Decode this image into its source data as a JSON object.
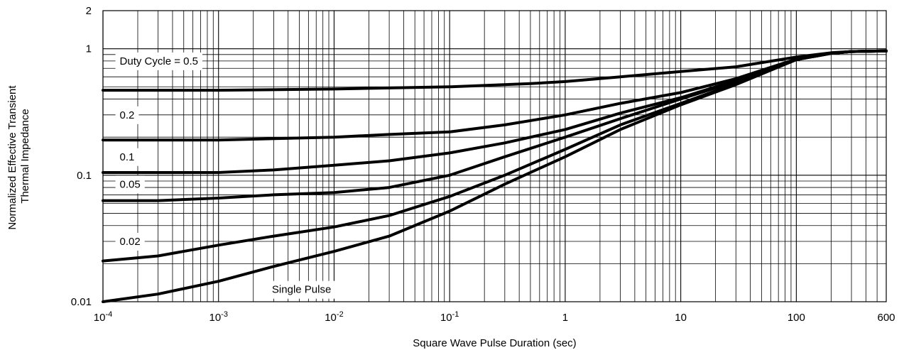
{
  "chart_data": {
    "type": "line",
    "title": "",
    "xlabel": "Square Wave Pulse Duration (sec)",
    "ylabel_lines": [
      "Normalized Effective Transient",
      "Thermal Impedance"
    ],
    "x_scale": "log",
    "y_scale": "log",
    "xlim": [
      0.0001,
      600
    ],
    "ylim": [
      0.01,
      2
    ],
    "grid": true,
    "x_ticks": [
      {
        "value": 0.0001,
        "base": "10",
        "exp": "-4"
      },
      {
        "value": 0.001,
        "base": "10",
        "exp": "-3"
      },
      {
        "value": 0.01,
        "base": "10",
        "exp": "-2"
      },
      {
        "value": 0.1,
        "base": "10",
        "exp": "-1"
      },
      {
        "value": 1,
        "base": "1",
        "exp": ""
      },
      {
        "value": 10,
        "base": "10",
        "exp": ""
      },
      {
        "value": 100,
        "base": "100",
        "exp": ""
      },
      {
        "value": 600,
        "base": "600",
        "exp": ""
      }
    ],
    "y_ticks": [
      {
        "value": 2,
        "label": "2"
      },
      {
        "value": 1,
        "label": "1"
      },
      {
        "value": 0.1,
        "label": "0.1"
      },
      {
        "value": 0.01,
        "label": "0.01"
      }
    ],
    "series": [
      {
        "name": "Duty Cycle = 0.5",
        "label_x": 0.00013,
        "label_y": 0.8,
        "x": [
          0.0001,
          0.001,
          0.01,
          0.1,
          0.5,
          1,
          3,
          10,
          30,
          100,
          200,
          300,
          600
        ],
        "y": [
          0.47,
          0.47,
          0.48,
          0.5,
          0.53,
          0.55,
          0.6,
          0.66,
          0.72,
          0.86,
          0.93,
          0.95,
          0.96
        ]
      },
      {
        "name": "0.2",
        "label_x": 0.00013,
        "label_y": 0.3,
        "x": [
          0.0001,
          0.001,
          0.01,
          0.03,
          0.1,
          0.3,
          1,
          3,
          10,
          30,
          100,
          200,
          300,
          600
        ],
        "y": [
          0.19,
          0.19,
          0.2,
          0.21,
          0.22,
          0.25,
          0.3,
          0.37,
          0.45,
          0.58,
          0.83,
          0.92,
          0.95,
          0.96
        ]
      },
      {
        "name": "0.1",
        "label_x": 0.00013,
        "label_y": 0.14,
        "x": [
          0.0001,
          0.001,
          0.003,
          0.01,
          0.03,
          0.1,
          0.3,
          1,
          3,
          10,
          30,
          100,
          200,
          300,
          600
        ],
        "y": [
          0.105,
          0.105,
          0.11,
          0.12,
          0.13,
          0.15,
          0.18,
          0.23,
          0.31,
          0.41,
          0.56,
          0.82,
          0.92,
          0.95,
          0.96
        ]
      },
      {
        "name": "0.05",
        "label_x": 0.00013,
        "label_y": 0.085,
        "x": [
          0.0001,
          0.0003,
          0.001,
          0.003,
          0.01,
          0.03,
          0.1,
          0.3,
          1,
          3,
          10,
          30,
          100,
          200,
          300,
          600
        ],
        "y": [
          0.063,
          0.063,
          0.066,
          0.07,
          0.073,
          0.08,
          0.1,
          0.14,
          0.2,
          0.28,
          0.4,
          0.55,
          0.82,
          0.92,
          0.95,
          0.96
        ]
      },
      {
        "name": "0.02",
        "label_x": 0.00013,
        "label_y": 0.03,
        "x": [
          0.0001,
          0.0003,
          0.001,
          0.003,
          0.01,
          0.03,
          0.1,
          0.3,
          1,
          3,
          10,
          30,
          100,
          200,
          300,
          600
        ],
        "y": [
          0.021,
          0.023,
          0.028,
          0.033,
          0.039,
          0.048,
          0.068,
          0.1,
          0.16,
          0.25,
          0.37,
          0.53,
          0.82,
          0.92,
          0.95,
          0.96
        ]
      },
      {
        "name": "Single Pulse",
        "label_x": 0.0027,
        "label_y": 0.0125,
        "x": [
          0.0001,
          0.0003,
          0.001,
          0.003,
          0.01,
          0.03,
          0.1,
          0.3,
          1,
          3,
          10,
          30,
          100,
          200,
          300,
          600
        ],
        "y": [
          0.01,
          0.0115,
          0.0145,
          0.019,
          0.025,
          0.033,
          0.052,
          0.085,
          0.14,
          0.23,
          0.36,
          0.52,
          0.82,
          0.92,
          0.95,
          0.96
        ]
      }
    ]
  }
}
